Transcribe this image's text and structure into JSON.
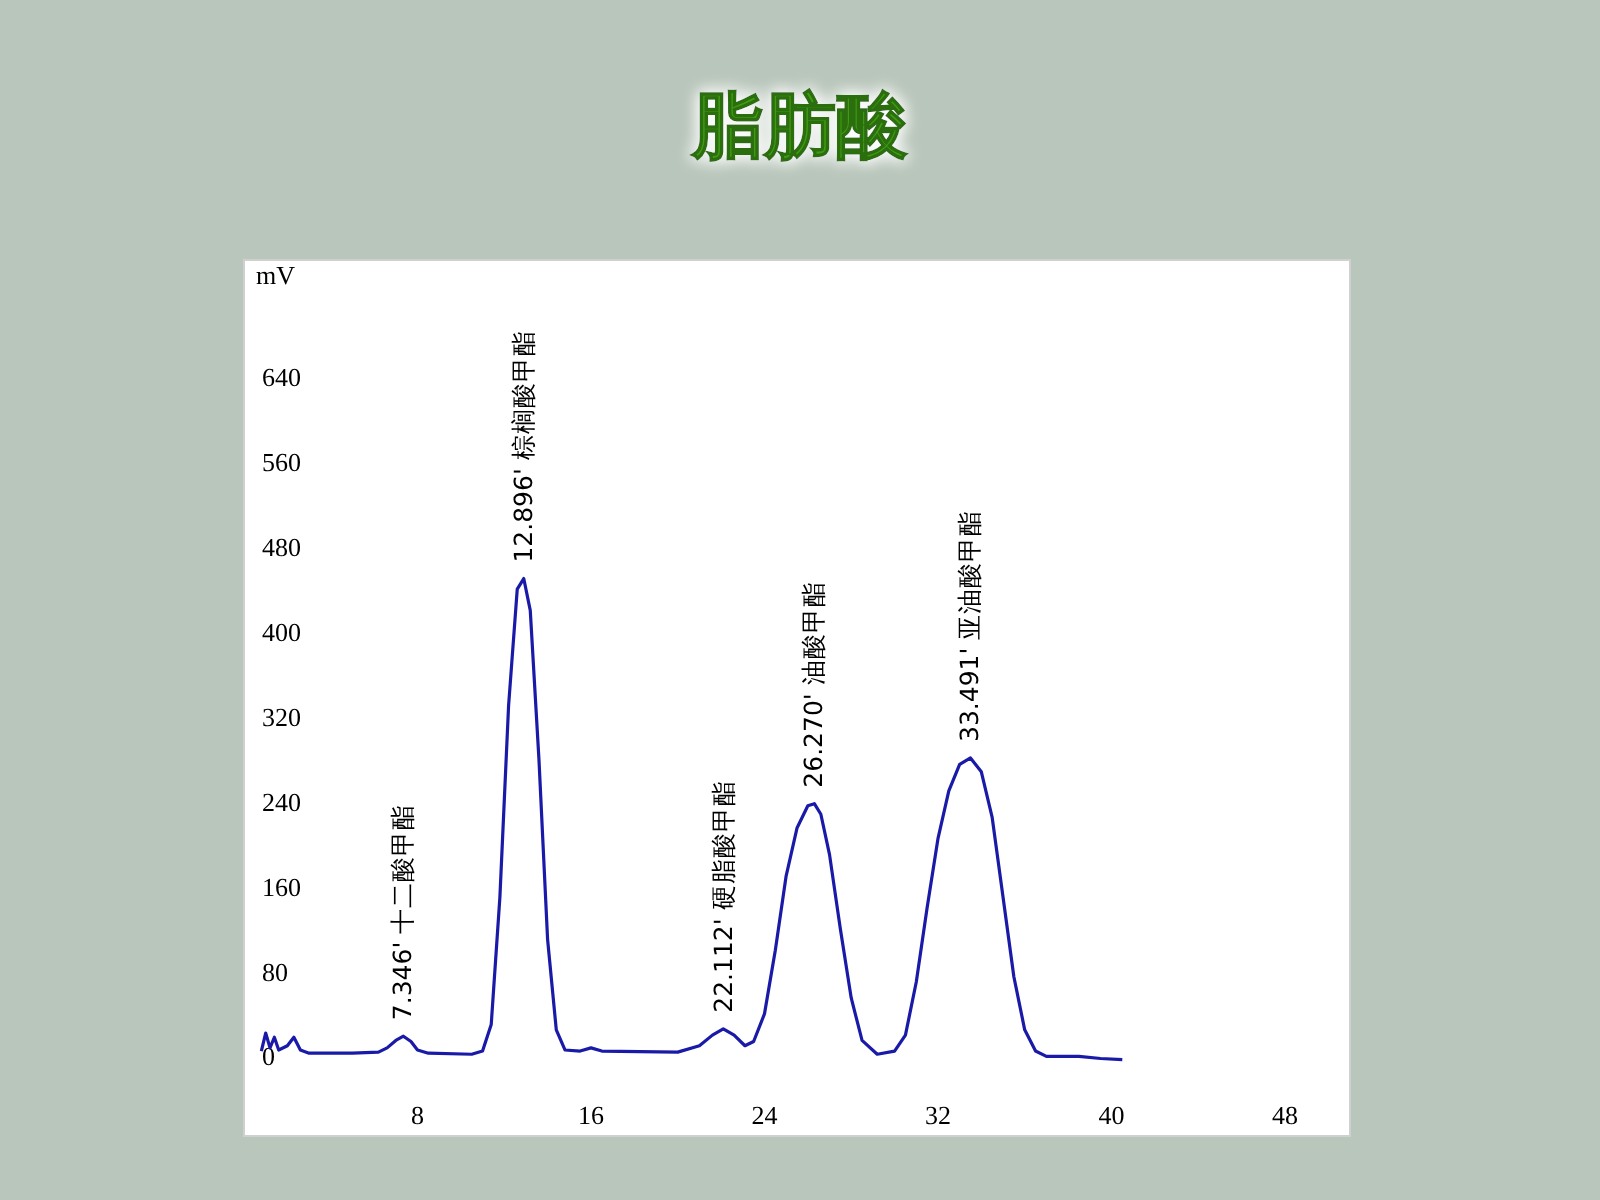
{
  "chart_data": {
    "type": "line",
    "title": "脂肪酸",
    "ylabel": "mV",
    "x": [
      0.8,
      1.0,
      1.2,
      1.4,
      1.6,
      2.0,
      2.3,
      2.6,
      3.0,
      5.0,
      6.2,
      6.6,
      7.0,
      7.35,
      7.7,
      8.0,
      8.5,
      10.5,
      11.0,
      11.4,
      11.8,
      12.2,
      12.6,
      12.9,
      13.2,
      13.6,
      14.0,
      14.4,
      14.8,
      15.5,
      16.0,
      16.5,
      20.0,
      21.0,
      21.6,
      22.1,
      22.6,
      23.1,
      23.5,
      24.0,
      24.5,
      25.0,
      25.5,
      26.0,
      26.3,
      26.6,
      27.0,
      27.5,
      28.0,
      28.5,
      29.2,
      30.0,
      30.5,
      31.0,
      31.5,
      32.0,
      32.5,
      33.0,
      33.5,
      34.0,
      34.5,
      35.0,
      35.5,
      36.0,
      36.5,
      37.0,
      38.5,
      39.5,
      40.5
    ],
    "series": [
      {
        "color": "#1a1aa8",
        "values": [
          5,
          22,
          8,
          18,
          6,
          10,
          18,
          6,
          3,
          3,
          4,
          8,
          15,
          19,
          14,
          6,
          3,
          2,
          5,
          30,
          150,
          330,
          440,
          450,
          420,
          280,
          110,
          25,
          6,
          5,
          8,
          5,
          4,
          10,
          20,
          26,
          20,
          10,
          14,
          40,
          100,
          170,
          215,
          236,
          238,
          228,
          190,
          120,
          55,
          15,
          2,
          5,
          20,
          70,
          140,
          205,
          250,
          275,
          281,
          268,
          225,
          150,
          75,
          25,
          5,
          0,
          0,
          -2,
          -3
        ]
      }
    ],
    "xlim": [
      0,
      51
    ],
    "xticks": [
      8,
      16,
      24,
      32,
      40,
      48
    ],
    "ylim": [
      -75,
      750
    ],
    "yticks": [
      0,
      80,
      160,
      240,
      320,
      400,
      480,
      560,
      640
    ],
    "grid": false,
    "marker": "none",
    "line_style": "solid",
    "annotations": [
      {
        "text": "7.346' 十二酸甲酯",
        "x": 7.346,
        "y": 19
      },
      {
        "text": "12.896' 棕榈酸甲酯",
        "x": 12.896,
        "y": 450
      },
      {
        "text": "22.112' 硬脂酸甲酯",
        "x": 22.112,
        "y": 26
      },
      {
        "text": "26.270' 油酸甲酯",
        "x": 26.27,
        "y": 238
      },
      {
        "text": "33.491' 亚油酸甲酯",
        "x": 33.491,
        "y": 281
      }
    ]
  }
}
